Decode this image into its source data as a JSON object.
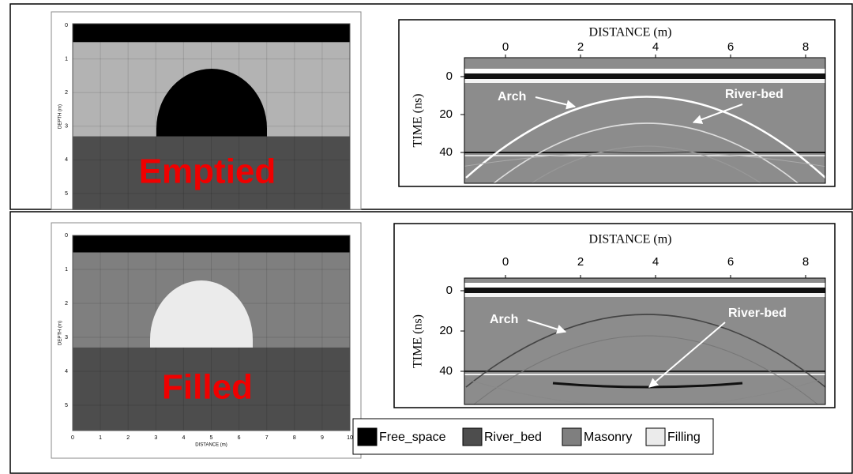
{
  "panels": [
    {
      "label": "Emptied",
      "model": {
        "y_title": "DEPTH (m)",
        "y_ticks": [
          0,
          1,
          2,
          3,
          4,
          5
        ]
      },
      "radargram": {
        "x_title": "DISTANCE (m)",
        "x_ticks": [
          0,
          2,
          4,
          6,
          8
        ],
        "y_title": "TIME (ns)",
        "y_ticks": [
          0,
          20,
          40
        ],
        "annotations": [
          "Arch",
          "River-bed"
        ]
      }
    },
    {
      "label": "Filled",
      "model": {
        "y_title": "DEPTH (m)",
        "y_ticks": [
          0,
          1,
          2,
          3,
          4,
          5
        ],
        "x_title": "DISTANCE (m)",
        "x_ticks": [
          0,
          1,
          2,
          3,
          4,
          5,
          6,
          7,
          8,
          9,
          10
        ]
      },
      "radargram": {
        "x_title": "DISTANCE (m)",
        "x_ticks": [
          0,
          2,
          4,
          6,
          8
        ],
        "y_title": "TIME (ns)",
        "y_ticks": [
          0,
          20,
          40
        ],
        "annotations": [
          "Arch",
          "River-bed"
        ]
      }
    }
  ],
  "legend": [
    "Free_space",
    "River_bed",
    "Masonry",
    "Filling"
  ]
}
